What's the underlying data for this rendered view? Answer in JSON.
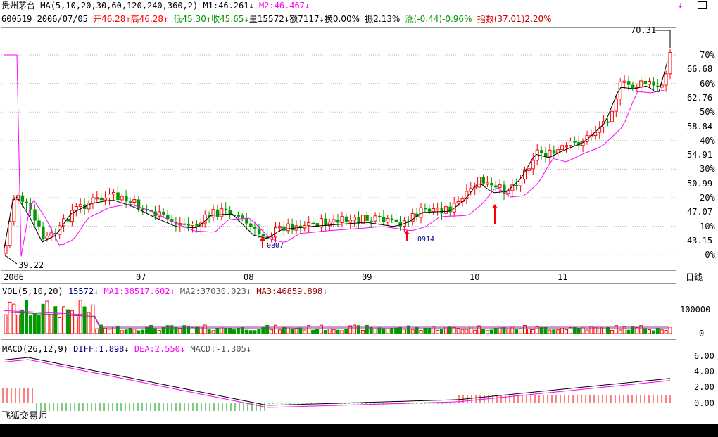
{
  "header": {
    "stock_name": "贵州茅台",
    "ma_label": "MA(5,10,20,30,60,120,240,360,2)",
    "m1": "M1:46.261",
    "m2": "M2:46.467",
    "code": "600519",
    "date": "2006/07/05",
    "open": "开46.28",
    "high": "高46.28",
    "low": "低45.30",
    "close": "收45.65",
    "volume": "量15572",
    "amount": "额7117",
    "turnover": "换0.00%",
    "amplitude": "振2.13%",
    "change": "涨(-0.44)-0.96%",
    "index": "指数(37.01)2.20%"
  },
  "price_axis": {
    "labels": [
      "70%",
      "66.68",
      "60%",
      "62.76",
      "50%",
      "58.84",
      "40%",
      "54.91",
      "30%",
      "50.99",
      "20%",
      "47.07",
      "10%",
      "43.15",
      "0%"
    ]
  },
  "annotations": {
    "high_price": "70.31",
    "low_price": "39.22",
    "signal_1": "0807",
    "signal_2": "0914"
  },
  "time_axis": {
    "labels": [
      "2006",
      "07",
      "08",
      "09",
      "10",
      "11"
    ],
    "right_label": "日线"
  },
  "volume_panel": {
    "title": "VOL(5,10,20)",
    "value": "15572",
    "ma1": "MA1:38517.602",
    "ma2": "MA2:37030.023",
    "ma3": "MA3:46859.898",
    "axis": [
      "100000",
      "0"
    ]
  },
  "macd_panel": {
    "title": "MACD(26,12,9)",
    "diff": "DIFF:1.898",
    "dea": "DEA:2.550",
    "macd": "MACD:-1.305",
    "axis": [
      "6.00",
      "4.00",
      "2.00",
      "0.00"
    ]
  },
  "footer": {
    "app_name": "飞狐交易师"
  },
  "colors": {
    "up": "#ff0000",
    "down": "#009900",
    "ma_short": "#000000",
    "ma_long": "#ff00ff",
    "grid": "#999999"
  },
  "icons": {
    "top_right_arrow": "pin-arrow-icon",
    "window_button": "restore-window-icon"
  }
}
